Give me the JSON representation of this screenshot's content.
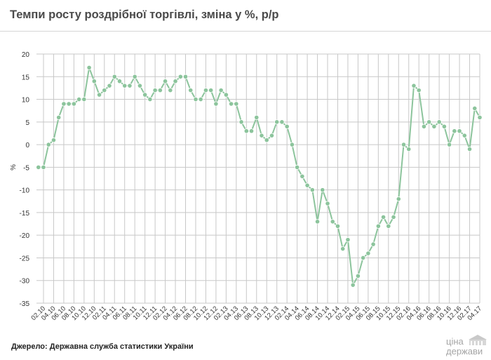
{
  "header": {
    "title": "Темпи росту роздрібної торгівлі, зміна у %, р/р"
  },
  "footer": {
    "source": "Джерело: Державна служба статистики України"
  },
  "logo": {
    "line1": "ціна",
    "line2": "держави"
  },
  "colors": {
    "line": "#8cc49c",
    "marker": "#8cc49c",
    "grid": "#c8c8c8",
    "text": "#333333"
  },
  "chart_data": {
    "type": "line",
    "title": "Темпи росту роздрібної торгівлі, зміна у %, р/р",
    "ylabel": "%",
    "xlabel": "",
    "ylim": [
      -35,
      20
    ],
    "yticks": [
      20,
      15,
      10,
      5,
      0,
      -5,
      -10,
      -15,
      -20,
      -25,
      -30,
      -35
    ],
    "grid": true,
    "legend": "none",
    "x": [
      "01.10",
      "02.10",
      "03.10",
      "04.10",
      "05.10",
      "06.10",
      "07.10",
      "08.10",
      "09.10",
      "10.10",
      "11.10",
      "12.10",
      "01.11",
      "02.11",
      "03.11",
      "04.11",
      "05.11",
      "06.11",
      "07.11",
      "08.11",
      "09.11",
      "10.11",
      "11.11",
      "12.11",
      "01.12",
      "02.12",
      "03.12",
      "04.12",
      "05.12",
      "06.12",
      "07.12",
      "08.12",
      "09.12",
      "10.12",
      "11.12",
      "12.12",
      "01.13",
      "02.13",
      "03.13",
      "04.13",
      "05.13",
      "06.13",
      "07.13",
      "08.13",
      "09.13",
      "10.13",
      "11.13",
      "12.13",
      "01.14",
      "02.14",
      "03.14",
      "04.14",
      "05.14",
      "06.14",
      "07.14",
      "08.14",
      "09.14",
      "10.14",
      "11.14",
      "12.14",
      "01.15",
      "02.15",
      "03.15",
      "04.15",
      "05.15",
      "06.15",
      "07.15",
      "08.15",
      "09.15",
      "10.15",
      "11.15",
      "12.15",
      "01.16",
      "02.16",
      "03.16",
      "04.16",
      "05.16",
      "06.16",
      "07.16",
      "08.16",
      "09.16",
      "10.16",
      "11.16",
      "12.16",
      "01.17",
      "02.17",
      "03.17",
      "04.17"
    ],
    "x_tick_labels": [
      "02.10",
      "04.10",
      "06.10",
      "08.10",
      "10.10",
      "12.10",
      "02.11",
      "04.11",
      "06.11",
      "08.11",
      "10.11",
      "12.11",
      "02.12",
      "04.12",
      "06.12",
      "08.12",
      "10.12",
      "12.12",
      "02.13",
      "04.13",
      "06.13",
      "08.13",
      "10.13",
      "12.13",
      "02.14",
      "04.14",
      "06.14",
      "08.14",
      "10.14",
      "12.14",
      "02.15",
      "04.15",
      "06.15",
      "08.15",
      "10.15",
      "12.15",
      "02.16",
      "04.16",
      "06.16",
      "08.16",
      "10.16",
      "12.16",
      "02.17",
      "04.17"
    ],
    "series": [
      {
        "values": [
          -5,
          -5,
          0,
          1,
          6,
          9,
          9,
          9,
          10,
          10,
          17,
          14,
          11,
          12,
          13,
          15,
          14,
          13,
          13,
          15,
          13,
          11,
          10,
          12,
          12,
          14,
          12,
          14,
          15,
          15,
          12,
          10,
          10,
          12,
          12,
          9,
          12,
          11,
          9,
          9,
          5,
          3,
          3,
          6,
          2,
          1,
          2,
          5,
          5,
          4,
          0,
          -5,
          -7,
          -9,
          -10,
          -17,
          -10,
          -13,
          -17,
          -18,
          -23,
          -21,
          -31,
          -29,
          -25,
          -24,
          -22,
          -18,
          -16,
          -18,
          -16,
          -12,
          0,
          -1,
          13,
          12,
          4,
          5,
          4,
          5,
          4,
          0,
          3,
          3,
          2,
          -1,
          8,
          6
        ]
      }
    ]
  }
}
